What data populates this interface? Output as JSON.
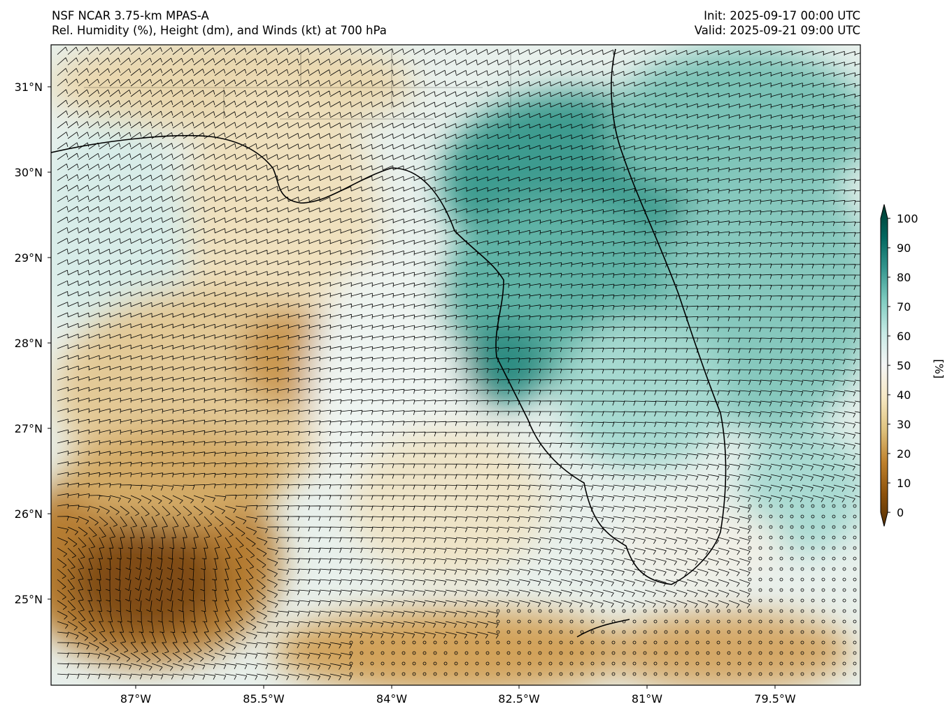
{
  "header": {
    "model": "NSF NCAR 3.75-km MPAS-A",
    "field": "Rel. Humidity (%), Height (dm), and Winds (kt) at 700 hPa",
    "init": "Init: 2025-09-17 00:00 UTC",
    "valid": "Valid: 2025-09-21 09:00 UTC"
  },
  "map": {
    "lat_labels": [
      "31°N",
      "30°N",
      "29°N",
      "28°N",
      "27°N",
      "26°N",
      "25°N"
    ],
    "lon_labels": [
      "87°W",
      "85.5°W",
      "84°W",
      "82.5°W",
      "81°W",
      "79.5°W"
    ]
  },
  "colorbar": {
    "label": "[%]",
    "ticks": [
      "100",
      "90",
      "80",
      "70",
      "60",
      "50",
      "40",
      "30",
      "20",
      "10",
      "0"
    ],
    "colors": [
      "#543005",
      "#8c510a",
      "#bf812d",
      "#dfc27d",
      "#f6e8c3",
      "#f5f5f5",
      "#c7eae5",
      "#80cdc1",
      "#35978f",
      "#01665e",
      "#003c30"
    ]
  }
}
